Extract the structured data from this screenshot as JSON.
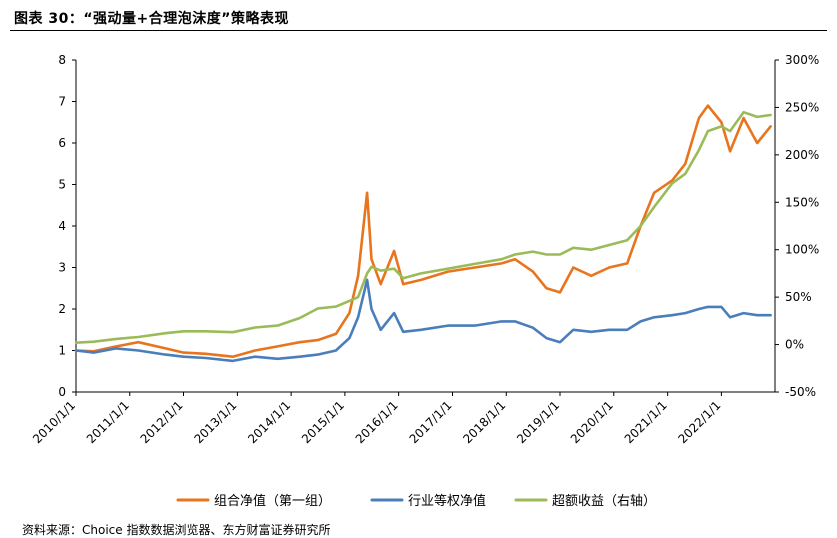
{
  "figure": {
    "title": "图表 30：“强动量+合理泡沫度”策略表现",
    "source": "资料来源：Choice 指数数据浏览器、东方财富证券研究所"
  },
  "chart_data": {
    "type": "line",
    "title": "",
    "xlabel": "",
    "ylabel": "",
    "y2label": "",
    "x_ticks": [
      "2010/1/1",
      "2011/1/1",
      "2012/1/1",
      "2013/1/1",
      "2014/1/1",
      "2015/1/1",
      "2016/1/1",
      "2017/1/1",
      "2018/1/1",
      "2019/1/1",
      "2020/1/1",
      "2021/1/1",
      "2022/1/1"
    ],
    "x_range": [
      "2010-01-01",
      "2022-12-31"
    ],
    "ylim": [
      0,
      8
    ],
    "y_ticks": [
      "0",
      "1",
      "2",
      "3",
      "4",
      "5",
      "6",
      "7",
      "8"
    ],
    "y2lim": [
      -50,
      300
    ],
    "y2_ticks": [
      "-50%",
      "0%",
      "50%",
      "100%",
      "150%",
      "200%",
      "250%",
      "300%"
    ],
    "legend_position": "bottom",
    "grid": false,
    "series": [
      {
        "name": "组合净值（第一组）",
        "axis": "left",
        "color": "#E8741E",
        "x": [
          "2010-01-01",
          "2010-05-01",
          "2010-10-01",
          "2011-03-01",
          "2011-09-01",
          "2012-01-01",
          "2012-06-01",
          "2012-12-01",
          "2013-05-01",
          "2013-10-01",
          "2014-03-01",
          "2014-07-01",
          "2014-11-01",
          "2015-02-01",
          "2015-04-01",
          "2015-06-01",
          "2015-07-01",
          "2015-09-01",
          "2015-12-01",
          "2016-02-01",
          "2016-06-01",
          "2016-12-01",
          "2017-06-01",
          "2017-12-01",
          "2018-03-01",
          "2018-07-01",
          "2018-10-01",
          "2019-01-01",
          "2019-04-01",
          "2019-08-01",
          "2019-12-01",
          "2020-04-01",
          "2020-07-01",
          "2020-10-01",
          "2021-02-01",
          "2021-05-01",
          "2021-08-01",
          "2021-10-01",
          "2022-01-01",
          "2022-03-01",
          "2022-06-01",
          "2022-09-01",
          "2022-12-01"
        ],
        "values": [
          1.0,
          0.98,
          1.1,
          1.2,
          1.05,
          0.95,
          0.92,
          0.85,
          1.0,
          1.1,
          1.2,
          1.25,
          1.4,
          1.9,
          2.8,
          4.8,
          3.2,
          2.6,
          3.4,
          2.6,
          2.7,
          2.9,
          3.0,
          3.1,
          3.2,
          2.9,
          2.5,
          2.4,
          3.0,
          2.8,
          3.0,
          3.1,
          4.0,
          4.8,
          5.1,
          5.5,
          6.6,
          6.9,
          6.5,
          5.8,
          6.6,
          6.0,
          6.4
        ]
      },
      {
        "name": "行业等权净值",
        "axis": "left",
        "color": "#4A7EBB",
        "x": [
          "2010-01-01",
          "2010-05-01",
          "2010-10-01",
          "2011-03-01",
          "2011-09-01",
          "2012-01-01",
          "2012-06-01",
          "2012-12-01",
          "2013-05-01",
          "2013-10-01",
          "2014-03-01",
          "2014-07-01",
          "2014-11-01",
          "2015-02-01",
          "2015-04-01",
          "2015-06-01",
          "2015-07-01",
          "2015-09-01",
          "2015-12-01",
          "2016-02-01",
          "2016-06-01",
          "2016-12-01",
          "2017-06-01",
          "2017-12-01",
          "2018-03-01",
          "2018-07-01",
          "2018-10-01",
          "2019-01-01",
          "2019-04-01",
          "2019-08-01",
          "2019-12-01",
          "2020-04-01",
          "2020-07-01",
          "2020-10-01",
          "2021-02-01",
          "2021-05-01",
          "2021-08-01",
          "2021-10-01",
          "2022-01-01",
          "2022-03-01",
          "2022-06-01",
          "2022-09-01",
          "2022-12-01"
        ],
        "values": [
          1.0,
          0.95,
          1.05,
          1.0,
          0.9,
          0.85,
          0.82,
          0.75,
          0.85,
          0.8,
          0.85,
          0.9,
          1.0,
          1.3,
          1.8,
          2.7,
          2.0,
          1.5,
          1.9,
          1.45,
          1.5,
          1.6,
          1.6,
          1.7,
          1.7,
          1.55,
          1.3,
          1.2,
          1.5,
          1.45,
          1.5,
          1.5,
          1.7,
          1.8,
          1.85,
          1.9,
          2.0,
          2.05,
          2.05,
          1.8,
          1.9,
          1.85,
          1.85
        ]
      },
      {
        "name": "超额收益（右轴）",
        "axis": "right",
        "color": "#9BBB59",
        "x": [
          "2010-01-01",
          "2010-05-01",
          "2010-10-01",
          "2011-03-01",
          "2011-09-01",
          "2012-01-01",
          "2012-06-01",
          "2012-12-01",
          "2013-05-01",
          "2013-10-01",
          "2014-03-01",
          "2014-07-01",
          "2014-11-01",
          "2015-02-01",
          "2015-04-01",
          "2015-06-01",
          "2015-07-01",
          "2015-09-01",
          "2015-12-01",
          "2016-02-01",
          "2016-06-01",
          "2016-12-01",
          "2017-06-01",
          "2017-12-01",
          "2018-03-01",
          "2018-07-01",
          "2018-10-01",
          "2019-01-01",
          "2019-04-01",
          "2019-08-01",
          "2019-12-01",
          "2020-04-01",
          "2020-07-01",
          "2020-10-01",
          "2021-02-01",
          "2021-05-01",
          "2021-08-01",
          "2021-10-01",
          "2022-01-01",
          "2022-03-01",
          "2022-06-01",
          "2022-09-01",
          "2022-12-01"
        ],
        "values": [
          2,
          3,
          6,
          8,
          12,
          14,
          14,
          13,
          18,
          20,
          28,
          38,
          40,
          46,
          50,
          75,
          82,
          78,
          80,
          70,
          75,
          80,
          85,
          90,
          95,
          98,
          95,
          95,
          102,
          100,
          105,
          110,
          125,
          145,
          170,
          180,
          205,
          225,
          230,
          225,
          245,
          240,
          242
        ]
      }
    ]
  }
}
